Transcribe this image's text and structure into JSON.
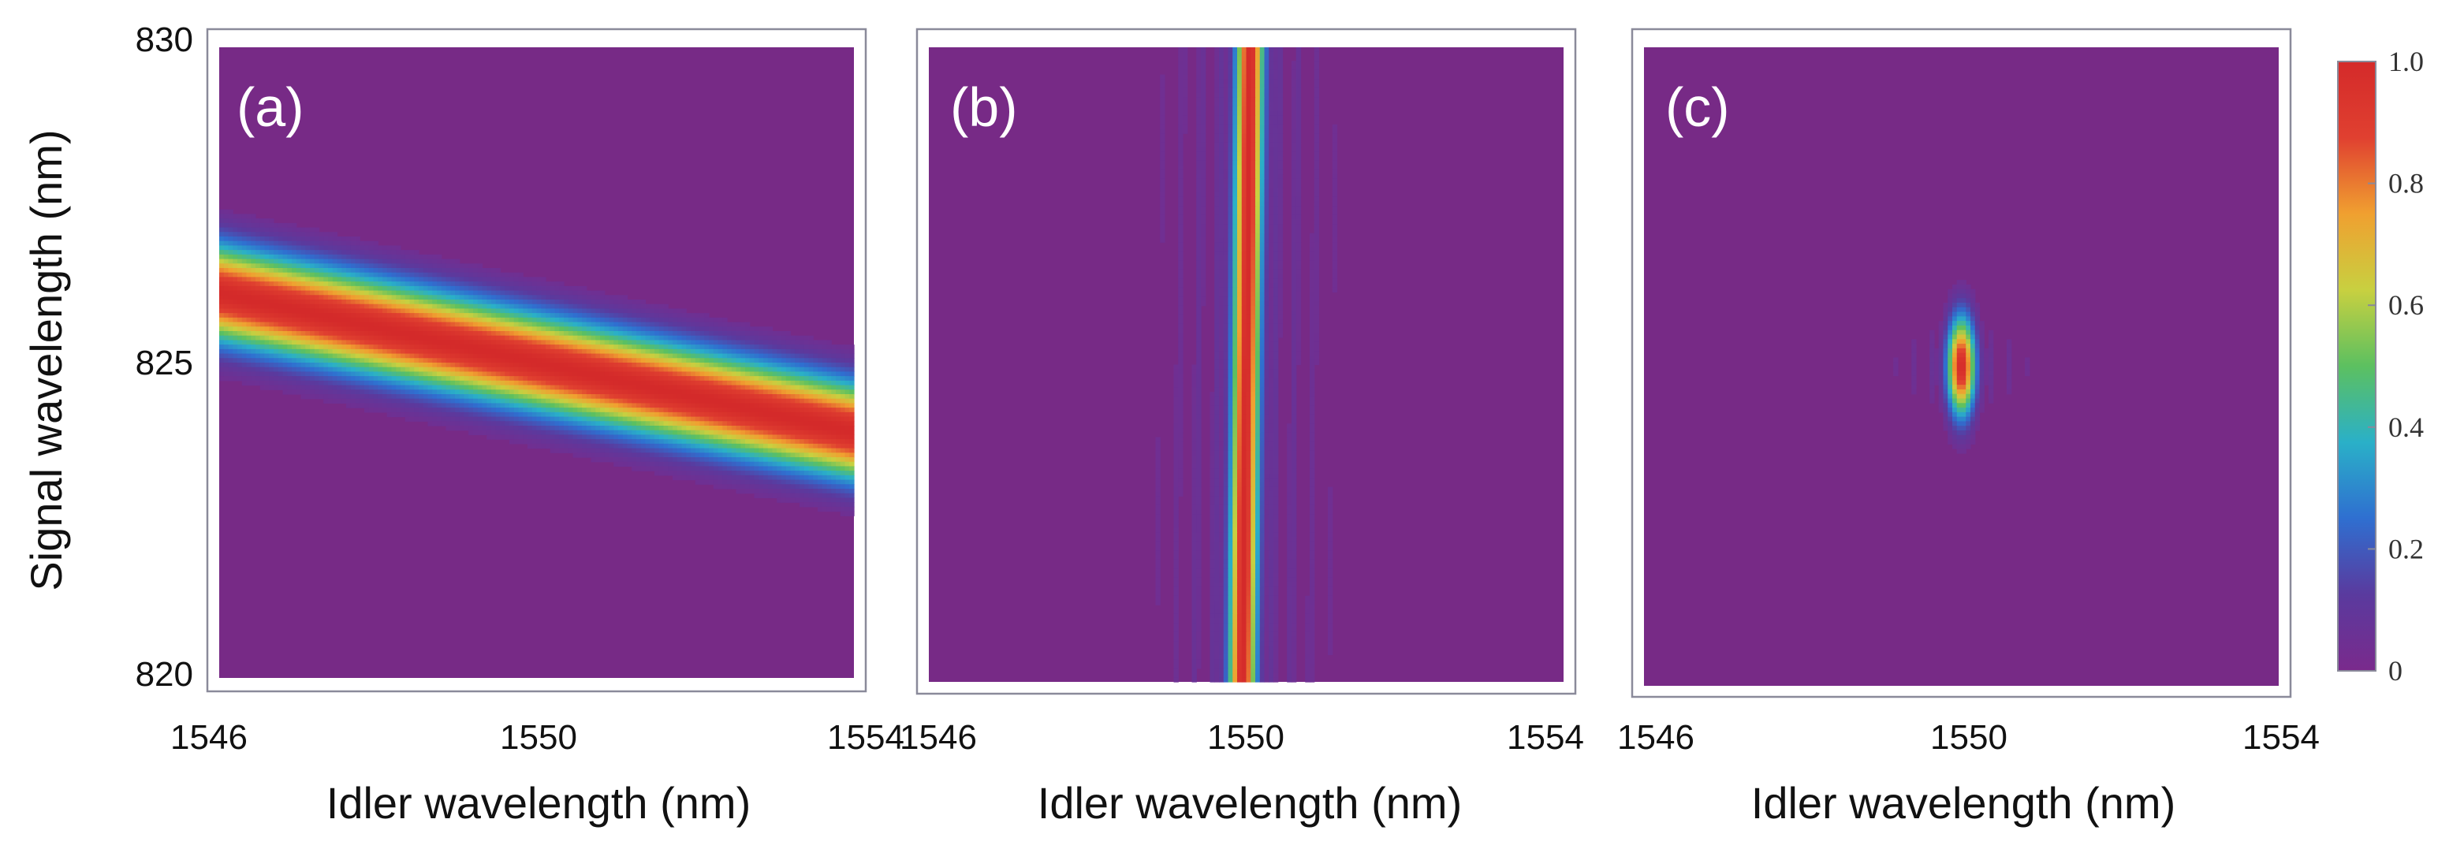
{
  "chart_data": [
    {
      "type": "heatmap",
      "panel_label": "(a)",
      "description_text": "",
      "xlabel": "Idler wavelength (nm)",
      "ylabel": "Signal wavelength (nm)",
      "xlim": [
        1546,
        1554
      ],
      "ylim": [
        820,
        830
      ],
      "xticks": [
        "1546",
        "1550",
        "1554"
      ],
      "yticks": [
        "830",
        "825",
        "820"
      ],
      "ridge": {
        "kind": "tilted-band",
        "y_at_xmin": 826.1,
        "y_at_xmax": 823.9,
        "sigma_nm": 0.75
      },
      "peak_value": 1.0
    },
    {
      "type": "heatmap",
      "panel_label": "(b)",
      "xlabel": "Idler wavelength (nm)",
      "ylabel": "",
      "xlim": [
        1546,
        1554
      ],
      "ylim": [
        820,
        830
      ],
      "xticks": [
        "1546",
        "1550",
        "1554"
      ],
      "yticks": [],
      "ridge": {
        "kind": "near-vertical-band",
        "x_at_ymin": 1549.95,
        "x_at_ymax": 1550.05,
        "sigma_nm": 0.17
      },
      "peak_value": 1.0
    },
    {
      "type": "heatmap",
      "panel_label": "(c)",
      "xlabel": "Idler wavelength (nm)",
      "ylabel": "",
      "xlim": [
        1546,
        1554
      ],
      "ylim": [
        820,
        830
      ],
      "xticks": [
        "1546",
        "1550",
        "1554"
      ],
      "yticks": [],
      "ridge": {
        "kind": "spot",
        "x_center": 1550,
        "y_center": 825,
        "sigma_x_nm": 0.17,
        "sigma_y_nm": 0.75
      },
      "peak_value": 1.0
    }
  ],
  "colorbar": {
    "range": [
      0,
      1
    ],
    "ticks": [
      "1.0",
      "0.8",
      "0.6",
      "0.4",
      "0.2",
      "0"
    ],
    "colors": [
      "#7a2a8c",
      "#5a3a9e",
      "#2f6fd0",
      "#2ab0c8",
      "#5cc060",
      "#c8d040",
      "#f0a030",
      "#e04030",
      "#d42a2a"
    ]
  },
  "background_color": "#772a86"
}
